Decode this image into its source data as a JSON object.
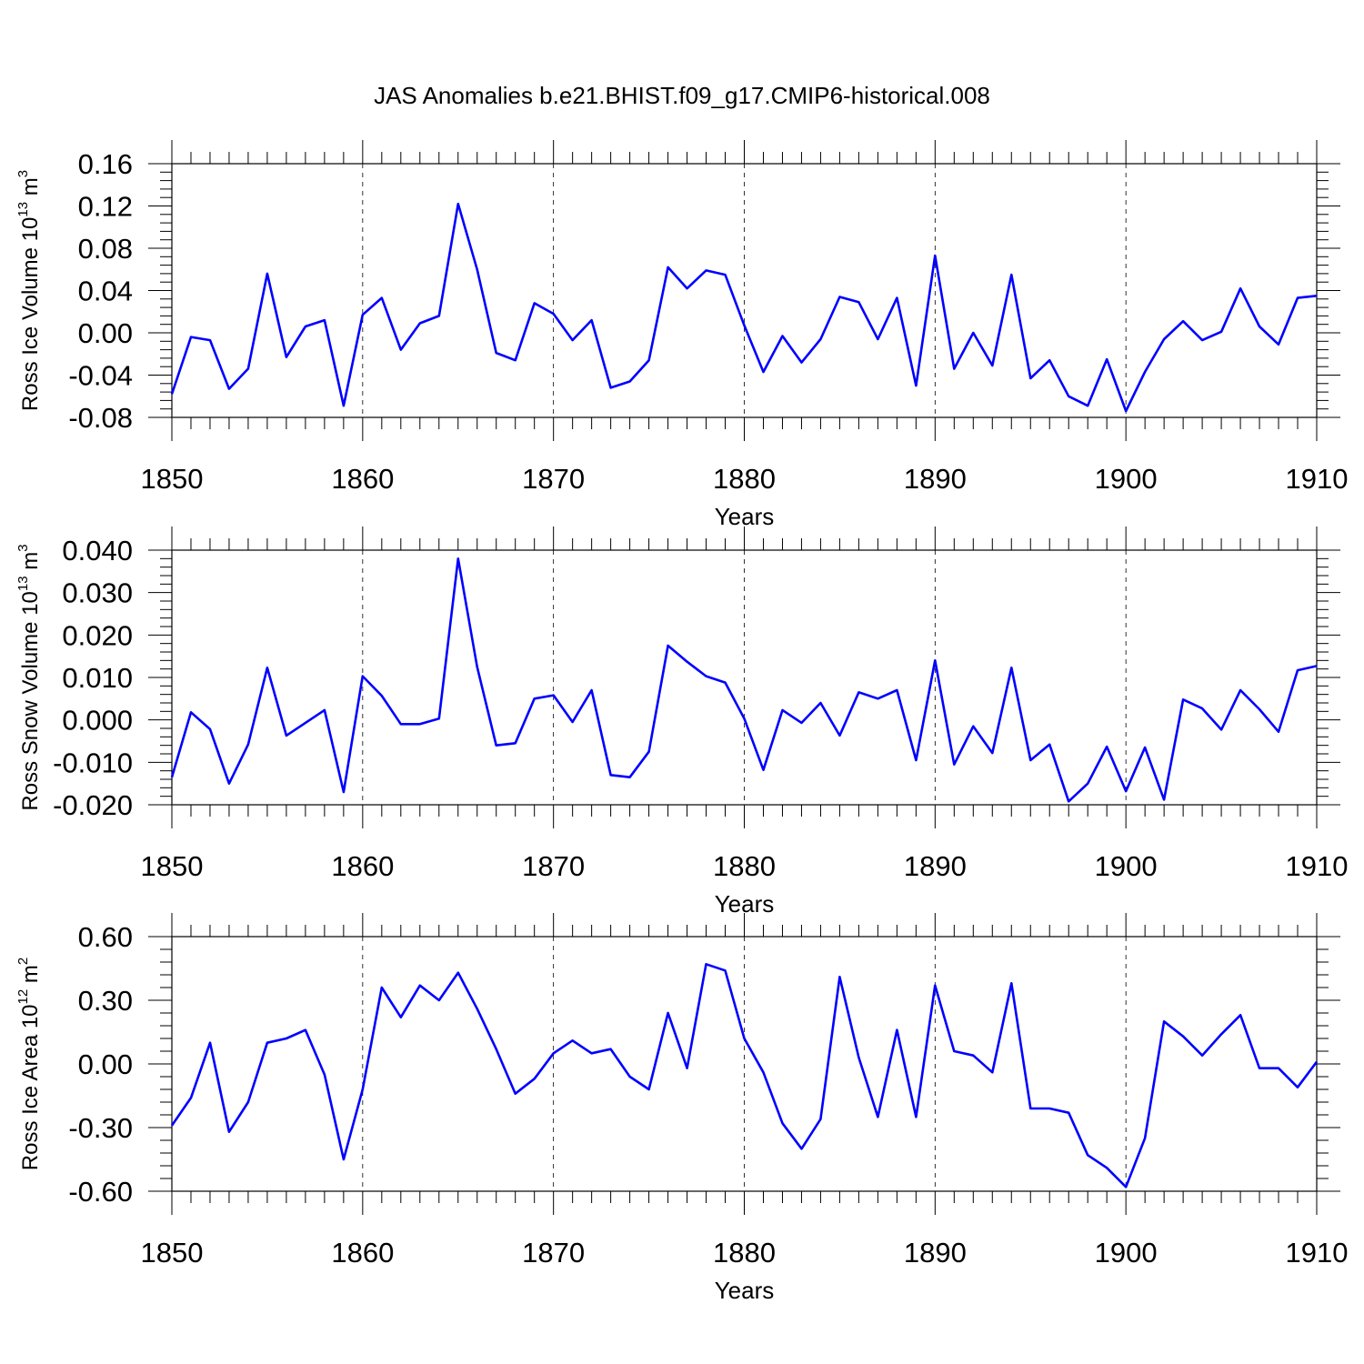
{
  "title": "JAS Anomalies b.e21.BHIST.f09_g17.CMIP6-historical.008",
  "colors": {
    "line": "#0000ff",
    "axis": "#000000",
    "grid": "#000000"
  },
  "chart_data": [
    {
      "type": "line",
      "name": "ross-ice-volume",
      "ylabel_main": "Ross Ice Volume 10",
      "ylabel_sup": "13",
      "ylabel_unit": " m",
      "ylabel_unit_sup": "3",
      "xlabel": "Years",
      "xlim": [
        1850,
        1910
      ],
      "ylim": [
        -0.08,
        0.16
      ],
      "yticks": [
        -0.08,
        -0.04,
        0.0,
        0.04,
        0.08,
        0.12,
        0.16
      ],
      "ytick_labels": [
        "-0.08",
        "-0.04",
        "0.00",
        "0.04",
        "0.08",
        "0.12",
        "0.16"
      ],
      "xticks": [
        1850,
        1860,
        1870,
        1880,
        1890,
        1900,
        1910
      ],
      "xtick_labels": [
        "1850",
        "1860",
        "1870",
        "1880",
        "1890",
        "1900",
        "1910"
      ],
      "x_start": 1850,
      "values": [
        -0.058,
        -0.004,
        -0.007,
        -0.053,
        -0.034,
        0.056,
        -0.023,
        0.006,
        0.012,
        -0.069,
        0.017,
        0.033,
        -0.016,
        0.009,
        0.016,
        0.122,
        0.06,
        -0.019,
        -0.026,
        0.028,
        0.018,
        -0.007,
        0.012,
        -0.052,
        -0.046,
        -0.026,
        0.062,
        0.042,
        0.059,
        0.055,
        0.007,
        -0.037,
        -0.003,
        -0.028,
        -0.006,
        0.034,
        0.029,
        -0.006,
        0.033,
        -0.05,
        0.073,
        -0.034,
        0.0,
        -0.031,
        0.055,
        -0.043,
        -0.026,
        -0.06,
        -0.069,
        -0.025,
        -0.074,
        -0.037,
        -0.006,
        0.011,
        -0.007,
        0.001,
        0.042,
        0.006,
        -0.011,
        0.033,
        0.035
      ]
    },
    {
      "type": "line",
      "name": "ross-snow-volume",
      "ylabel_main": "Ross Snow Volume 10",
      "ylabel_sup": "13",
      "ylabel_unit": " m",
      "ylabel_unit_sup": "3",
      "xlabel": "Years",
      "xlim": [
        1850,
        1910
      ],
      "ylim": [
        -0.02,
        0.04
      ],
      "yticks": [
        -0.02,
        -0.01,
        0.0,
        0.01,
        0.02,
        0.03,
        0.04
      ],
      "ytick_labels": [
        "-0.020",
        "-0.010",
        "0.000",
        "0.010",
        "0.020",
        "0.030",
        "0.040"
      ],
      "xticks": [
        1850,
        1860,
        1870,
        1880,
        1890,
        1900,
        1910
      ],
      "xtick_labels": [
        "1850",
        "1860",
        "1870",
        "1880",
        "1890",
        "1900",
        "1910"
      ],
      "x_start": 1850,
      "values": [
        -0.0135,
        0.0018,
        -0.0022,
        -0.015,
        -0.0058,
        0.0123,
        -0.0037,
        -0.0007,
        0.0023,
        -0.017,
        0.0103,
        0.0057,
        -0.001,
        -0.001,
        0.0003,
        0.038,
        0.0125,
        -0.006,
        -0.0055,
        0.005,
        0.0058,
        -0.0005,
        0.007,
        -0.013,
        -0.0135,
        -0.0075,
        0.0175,
        0.0137,
        0.0103,
        0.0088,
        0.0003,
        -0.0118,
        0.0023,
        -0.0007,
        0.004,
        -0.0037,
        0.0065,
        0.005,
        0.007,
        -0.0095,
        0.014,
        -0.0105,
        -0.0015,
        -0.0078,
        0.0123,
        -0.0095,
        -0.0058,
        -0.0192,
        -0.015,
        -0.0063,
        -0.0168,
        -0.0065,
        -0.0188,
        0.0048,
        0.0027,
        -0.0023,
        0.007,
        0.0025,
        -0.0028,
        0.0117,
        0.0127
      ]
    },
    {
      "type": "line",
      "name": "ross-ice-area",
      "ylabel_main": "Ross Ice Area 10",
      "ylabel_sup": "12",
      "ylabel_unit": " m",
      "ylabel_unit_sup": "2",
      "xlabel": "Years",
      "xlim": [
        1850,
        1910
      ],
      "ylim": [
        -0.6,
        0.6
      ],
      "yticks": [
        -0.6,
        -0.3,
        0.0,
        0.3,
        0.6
      ],
      "ytick_labels": [
        "-0.60",
        "-0.30",
        "0.00",
        "0.30",
        "0.60"
      ],
      "xticks": [
        1850,
        1860,
        1870,
        1880,
        1890,
        1900,
        1910
      ],
      "xtick_labels": [
        "1850",
        "1860",
        "1870",
        "1880",
        "1890",
        "1900",
        "1910"
      ],
      "x_start": 1850,
      "values": [
        -0.29,
        -0.16,
        0.1,
        -0.32,
        -0.18,
        0.1,
        0.12,
        0.16,
        -0.05,
        -0.45,
        -0.12,
        0.36,
        0.22,
        0.37,
        0.3,
        0.43,
        0.26,
        0.07,
        -0.14,
        -0.07,
        0.05,
        0.11,
        0.05,
        0.07,
        -0.06,
        -0.12,
        0.24,
        -0.02,
        0.47,
        0.44,
        0.12,
        -0.04,
        -0.28,
        -0.4,
        -0.26,
        0.41,
        0.03,
        -0.25,
        0.16,
        -0.25,
        0.37,
        0.06,
        0.04,
        -0.04,
        0.38,
        -0.21,
        -0.21,
        -0.23,
        -0.43,
        -0.49,
        -0.58,
        -0.35,
        0.2,
        0.13,
        0.04,
        0.14,
        0.23,
        -0.02,
        -0.02,
        -0.11,
        0.01
      ]
    }
  ]
}
